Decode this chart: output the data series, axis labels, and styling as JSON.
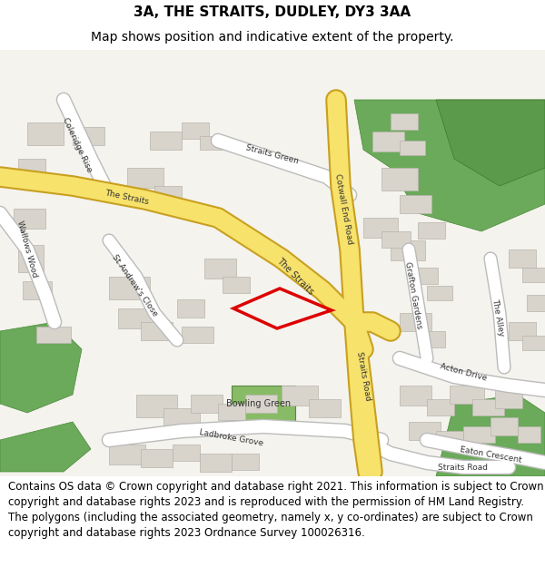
{
  "title_line1": "3A, THE STRAITS, DUDLEY, DY3 3AA",
  "title_line2": "Map shows position and indicative extent of the property.",
  "footer_text": "Contains OS data © Crown copyright and database right 2021. This information is subject to Crown copyright and database rights 2023 and is reproduced with the permission of HM Land Registry. The polygons (including the associated geometry, namely x, y co-ordinates) are subject to Crown copyright and database rights 2023 Ordnance Survey 100026316.",
  "title_fontsize": 11,
  "subtitle_fontsize": 10,
  "footer_fontsize": 8.5,
  "fig_width": 6.0,
  "fig_height": 6.25,
  "map_bg": "#f5f3ee",
  "road_yellow": "#f7e26b",
  "road_yellow_border": "#d4b94a",
  "road_white": "#ffffff",
  "road_border": "#cccccc",
  "green_area": "#7cb87c",
  "dark_green": "#4a7a4a",
  "building_color": "#d8d0c8",
  "building_border": "#b8b0a8",
  "title_bg": "#ffffff",
  "footer_bg": "#ffffff"
}
